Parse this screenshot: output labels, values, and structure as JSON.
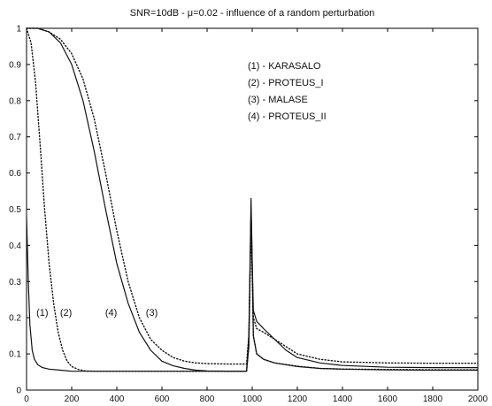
{
  "chart_data": {
    "type": "line",
    "title": "SNR=10dB - μ=0.02 - influence of a random perturbation",
    "xlabel": "",
    "ylabel": "",
    "xlim": [
      0,
      2000
    ],
    "ylim": [
      0,
      1
    ],
    "xticks": [
      "0",
      "200",
      "400",
      "600",
      "800",
      "1000",
      "1200",
      "1400",
      "1600",
      "1800",
      "2000"
    ],
    "yticks": [
      "0",
      "0.1",
      "0.2",
      "0.3",
      "0.4",
      "0.5",
      "0.6",
      "0.7",
      "0.8",
      "0.9",
      "1"
    ],
    "grid": false,
    "legend": {
      "placement": "top-right",
      "entries": [
        "(1) - KARASALO",
        "(2) - PROTEUS_I",
        "(3) - MALASE",
        "(4) - PROTEUS_II"
      ]
    },
    "curve_labels": [
      {
        "text": "(1)",
        "x": 70,
        "y": 0.205
      },
      {
        "text": "(2)",
        "x": 175,
        "y": 0.205
      },
      {
        "text": "(4)",
        "x": 375,
        "y": 0.205
      },
      {
        "text": "(3)",
        "x": 555,
        "y": 0.205
      }
    ],
    "series": [
      {
        "style": "solid",
        "x": [
          0,
          8,
          15,
          25,
          35,
          50,
          70,
          100,
          150,
          200,
          300,
          400,
          500,
          600,
          700,
          800,
          900,
          975,
          985,
          990,
          995,
          1000,
          1005,
          1020,
          1050,
          1100,
          1200,
          1300,
          1400,
          1600,
          1800,
          2000
        ],
        "y": [
          0.48,
          0.3,
          0.18,
          0.11,
          0.085,
          0.07,
          0.062,
          0.058,
          0.055,
          0.052,
          0.052,
          0.052,
          0.052,
          0.052,
          0.052,
          0.052,
          0.052,
          0.052,
          0.12,
          0.3,
          0.5,
          0.35,
          0.15,
          0.1,
          0.085,
          0.075,
          0.065,
          0.06,
          0.058,
          0.056,
          0.055,
          0.055
        ]
      },
      {
        "style": "dotted",
        "x": [
          0,
          20,
          40,
          60,
          80,
          100,
          120,
          140,
          160,
          180,
          200,
          230,
          260,
          300,
          400,
          600,
          800,
          975,
          985,
          990,
          995,
          1000,
          1005,
          1020,
          1050,
          1100,
          1200,
          1300,
          1400,
          1600,
          1800,
          2000
        ],
        "y": [
          1.0,
          0.96,
          0.85,
          0.68,
          0.5,
          0.35,
          0.24,
          0.16,
          0.11,
          0.08,
          0.065,
          0.057,
          0.053,
          0.052,
          0.052,
          0.052,
          0.052,
          0.052,
          0.12,
          0.3,
          0.49,
          0.33,
          0.15,
          0.1,
          0.085,
          0.075,
          0.066,
          0.06,
          0.058,
          0.057,
          0.056,
          0.056
        ]
      },
      {
        "style": "dotted",
        "x": [
          0,
          50,
          100,
          150,
          200,
          250,
          300,
          350,
          400,
          450,
          500,
          550,
          600,
          650,
          700,
          750,
          800,
          900,
          975,
          985,
          990,
          995,
          1000,
          1005,
          1020,
          1050,
          1100,
          1150,
          1200,
          1300,
          1400,
          1600,
          1800,
          2000
        ],
        "y": [
          1.0,
          1.0,
          0.99,
          0.97,
          0.93,
          0.86,
          0.75,
          0.6,
          0.44,
          0.3,
          0.2,
          0.14,
          0.11,
          0.09,
          0.08,
          0.075,
          0.073,
          0.072,
          0.072,
          0.15,
          0.3,
          0.45,
          0.33,
          0.2,
          0.17,
          0.16,
          0.14,
          0.12,
          0.1,
          0.085,
          0.078,
          0.075,
          0.074,
          0.074
        ]
      },
      {
        "style": "solid",
        "x": [
          0,
          50,
          100,
          150,
          200,
          250,
          300,
          350,
          400,
          450,
          500,
          550,
          600,
          650,
          700,
          750,
          800,
          900,
          975,
          985,
          990,
          995,
          1000,
          1005,
          1020,
          1050,
          1100,
          1150,
          1200,
          1300,
          1400,
          1600,
          1800,
          2000
        ],
        "y": [
          1.0,
          1.0,
          0.99,
          0.96,
          0.9,
          0.8,
          0.66,
          0.5,
          0.35,
          0.24,
          0.16,
          0.11,
          0.08,
          0.067,
          0.06,
          0.055,
          0.053,
          0.052,
          0.052,
          0.15,
          0.32,
          0.53,
          0.36,
          0.22,
          0.19,
          0.17,
          0.14,
          0.11,
          0.09,
          0.075,
          0.068,
          0.063,
          0.062,
          0.062
        ]
      }
    ]
  }
}
